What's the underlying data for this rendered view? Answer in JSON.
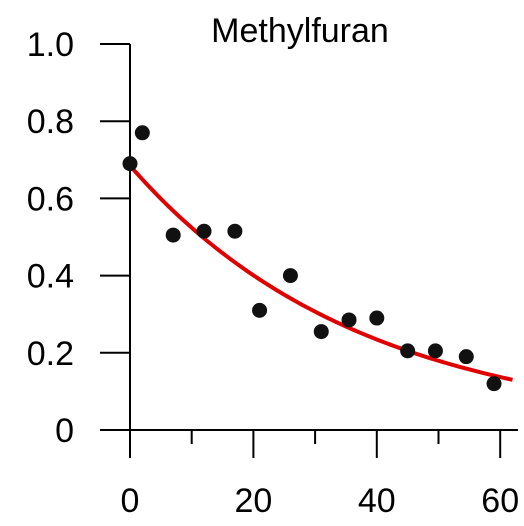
{
  "chart_data": {
    "type": "scatter",
    "title": "Methylfuran",
    "xlabel": "",
    "ylabel": "",
    "xlim": [
      0,
      62
    ],
    "ylim": [
      0,
      1.0
    ],
    "x_ticks": [
      0,
      20,
      40,
      60
    ],
    "x_tick_labels": [
      "0",
      "20",
      "40",
      "60"
    ],
    "x_minor_ticks": [
      10,
      30,
      50
    ],
    "y_ticks": [
      0,
      0.2,
      0.4,
      0.6,
      0.8,
      1.0
    ],
    "y_tick_labels": [
      "0",
      "0.2",
      "0.4",
      "0.6",
      "0.8",
      "1.0"
    ],
    "grid": false,
    "points": {
      "color": "#111111",
      "x": [
        0,
        2,
        7,
        12,
        17,
        21,
        26,
        31,
        35.5,
        40,
        45,
        49.5,
        54.5,
        59
      ],
      "y": [
        0.69,
        0.77,
        0.505,
        0.515,
        0.515,
        0.31,
        0.4,
        0.255,
        0.285,
        0.29,
        0.205,
        0.205,
        0.19,
        0.12
      ]
    },
    "fit_curve": {
      "type": "exponential",
      "color": "#e00000",
      "a": 0.685,
      "k": 0.0268,
      "x_range": [
        0,
        62
      ]
    }
  }
}
